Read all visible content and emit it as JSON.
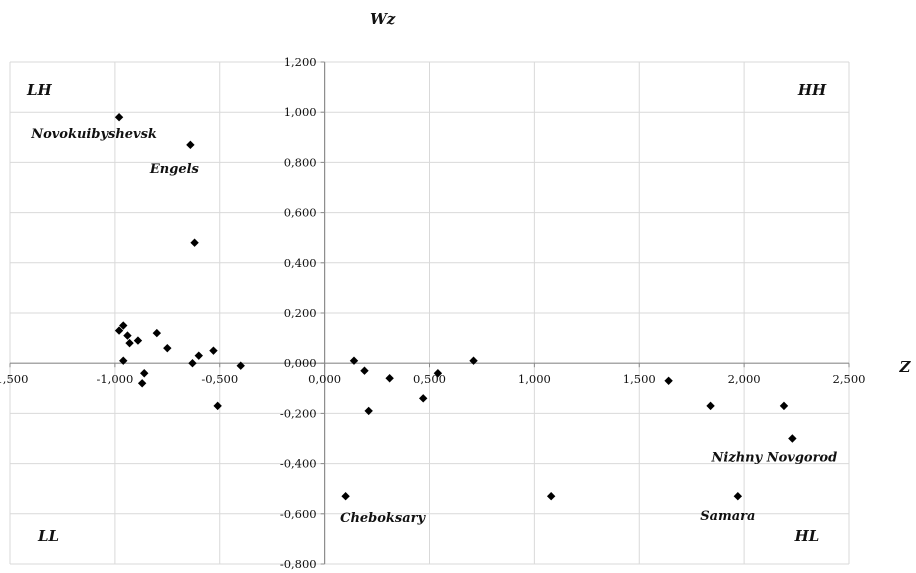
{
  "chart_data": {
    "type": "scatter",
    "title": "",
    "xlabel": "Z",
    "ylabel": "Wz",
    "xlim": [
      -1.5,
      2.5
    ],
    "ylim": [
      -0.8,
      1.2
    ],
    "x_ticks": [
      -1.5,
      -1.0,
      -0.5,
      0.0,
      0.5,
      1.0,
      1.5,
      2.0,
      2.5
    ],
    "y_ticks": [
      -0.8,
      -0.6,
      -0.4,
      -0.2,
      0.0,
      0.2,
      0.4,
      0.6,
      0.8,
      1.0,
      1.2
    ],
    "x_tick_labels": [
      "-1,500",
      "-1,000",
      "-0,500",
      "0,000",
      "0,500",
      "1,000",
      "1,500",
      "2,000",
      "2,500"
    ],
    "y_tick_labels": [
      "-0,800",
      "-0,600",
      "-0,400",
      "-0,200",
      "0,000",
      "0,200",
      "0,400",
      "0,600",
      "0,800",
      "1,000",
      "1,200"
    ],
    "grid": true,
    "legend": "none",
    "marker_color": "#000000",
    "grid_color": "#d9d9d9",
    "axis_color": "#8c8c8c",
    "quadrants": [
      "LH",
      "HH",
      "LL",
      "HL"
    ],
    "points": [
      {
        "x": -0.98,
        "y": 0.98
      },
      {
        "x": -0.64,
        "y": 0.87
      },
      {
        "x": -0.62,
        "y": 0.48
      },
      {
        "x": -0.98,
        "y": 0.13
      },
      {
        "x": -0.96,
        "y": 0.15
      },
      {
        "x": -0.94,
        "y": 0.11
      },
      {
        "x": -0.93,
        "y": 0.08
      },
      {
        "x": -0.89,
        "y": 0.09
      },
      {
        "x": -0.8,
        "y": 0.12
      },
      {
        "x": -0.75,
        "y": 0.06
      },
      {
        "x": -0.96,
        "y": 0.01
      },
      {
        "x": -0.86,
        "y": -0.04
      },
      {
        "x": -0.87,
        "y": -0.08
      },
      {
        "x": -0.63,
        "y": 0.0
      },
      {
        "x": -0.6,
        "y": 0.03
      },
      {
        "x": -0.53,
        "y": 0.05
      },
      {
        "x": -0.4,
        "y": -0.01
      },
      {
        "x": -0.51,
        "y": -0.17
      },
      {
        "x": 0.14,
        "y": 0.01
      },
      {
        "x": 0.19,
        "y": -0.03
      },
      {
        "x": 0.31,
        "y": -0.06
      },
      {
        "x": 0.21,
        "y": -0.19
      },
      {
        "x": 0.47,
        "y": -0.14
      },
      {
        "x": 0.54,
        "y": -0.04
      },
      {
        "x": 0.71,
        "y": 0.01
      },
      {
        "x": 0.1,
        "y": -0.53
      },
      {
        "x": 1.08,
        "y": -0.53
      },
      {
        "x": 1.64,
        "y": -0.07
      },
      {
        "x": 1.84,
        "y": -0.17
      },
      {
        "x": 1.97,
        "y": -0.53
      },
      {
        "x": 2.19,
        "y": -0.17
      },
      {
        "x": 2.23,
        "y": -0.3
      }
    ],
    "annotations": [
      {
        "text": "Novokuibyshevsk",
        "x": -0.98,
        "y": 0.98
      },
      {
        "text": "Engels",
        "x": -0.64,
        "y": 0.87
      },
      {
        "text": "Cheboksary",
        "x": 0.1,
        "y": -0.53
      },
      {
        "text": "Samara",
        "x": 1.97,
        "y": -0.53
      },
      {
        "text": "Nizhny Novgorod",
        "x": 2.23,
        "y": -0.3
      }
    ]
  }
}
